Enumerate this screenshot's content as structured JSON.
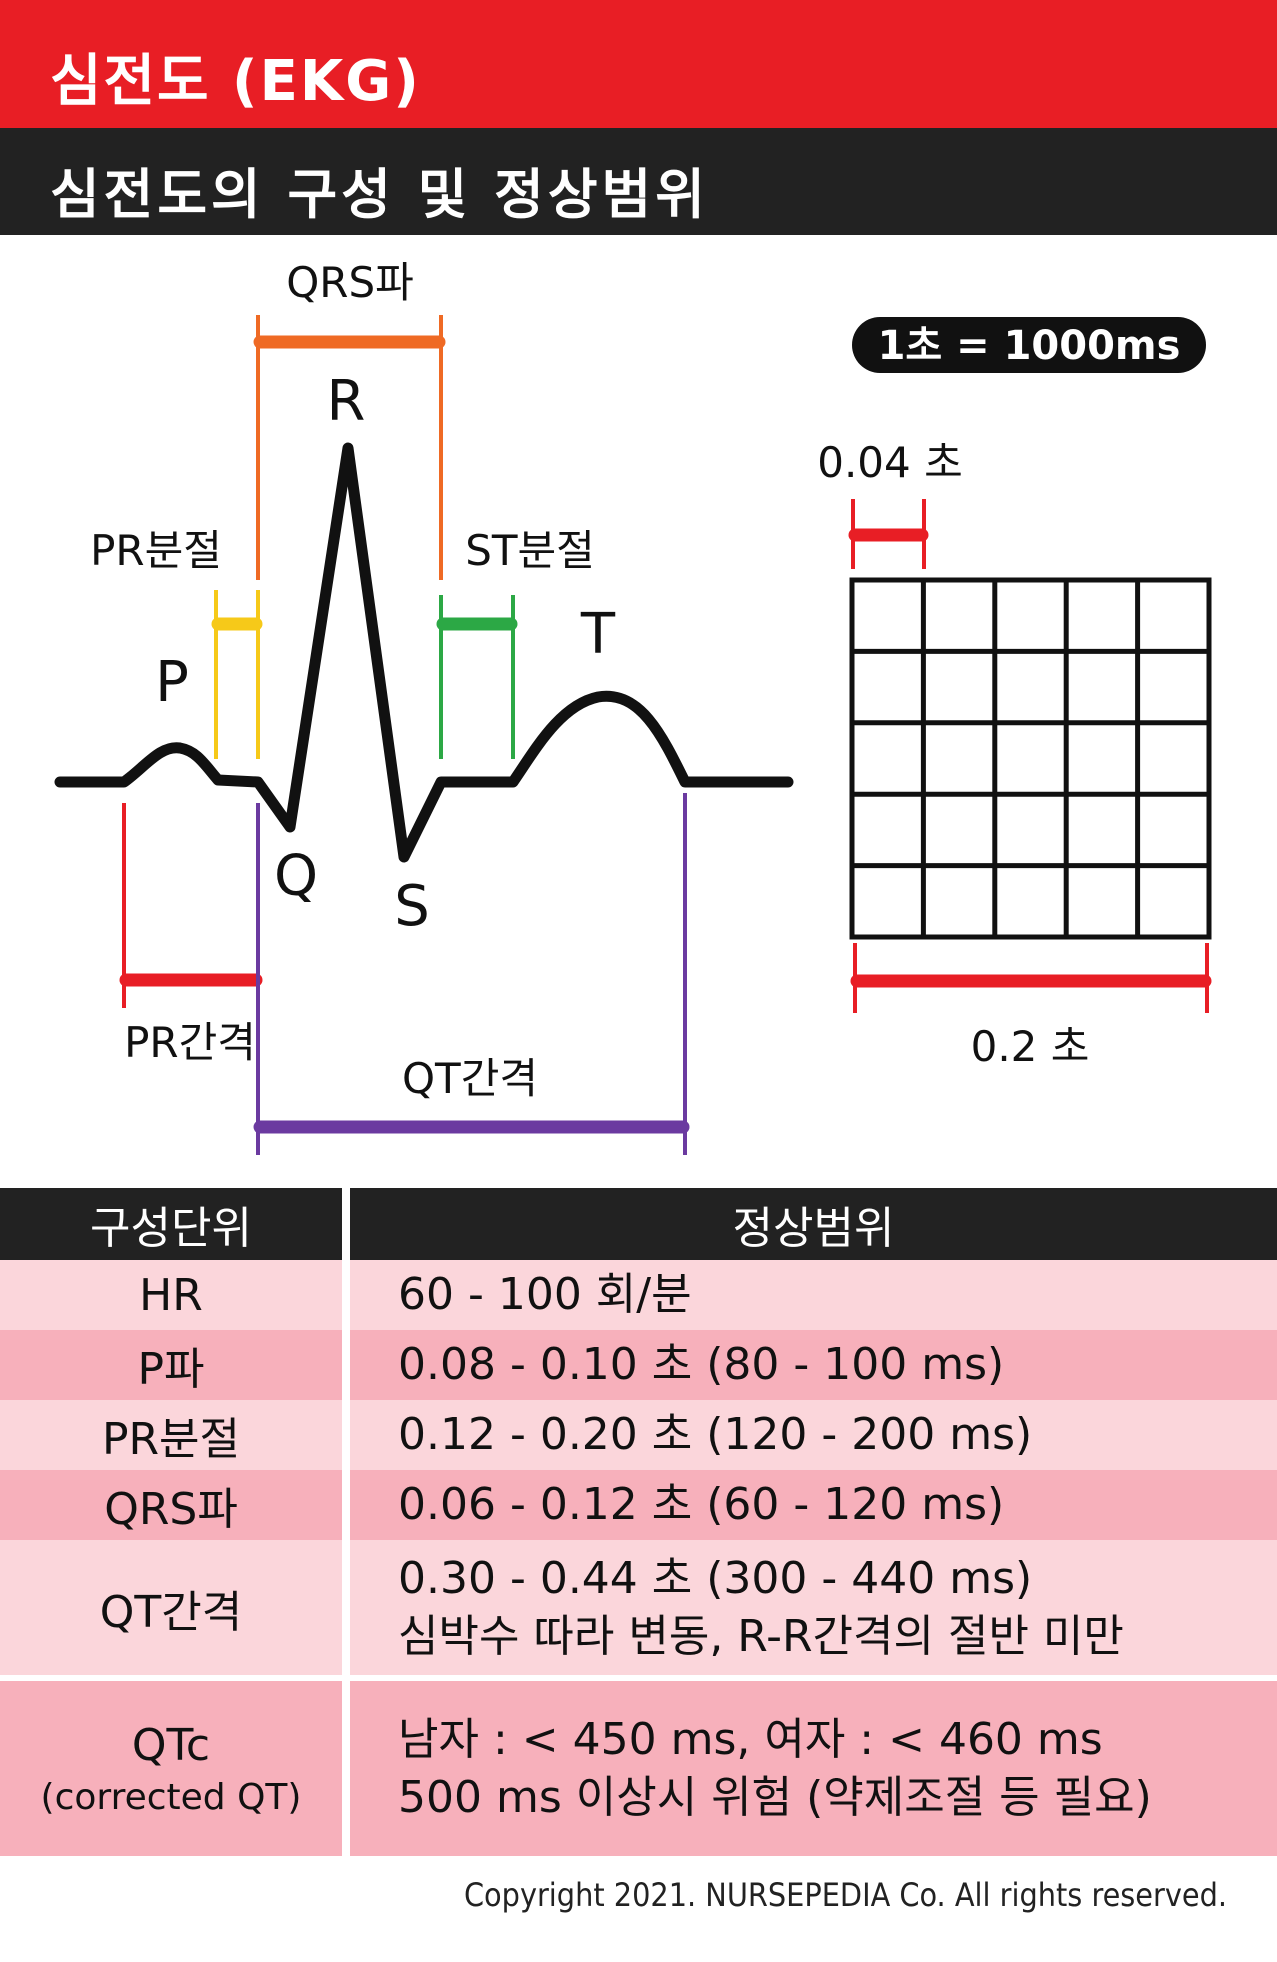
{
  "header": {
    "title": "심전도 (EKG)",
    "subtitle": "심전도의 구성 및 정상범위"
  },
  "waveform": {
    "labels": {
      "p": "P",
      "q": "Q",
      "r": "R",
      "s": "S",
      "t": "T"
    },
    "intervals": {
      "qrs": "QRS파",
      "pr_segment": "PR분절",
      "st_segment": "ST분절",
      "pr_interval": "PR간격",
      "qt_interval": "QT간격"
    },
    "colors": {
      "qrs": "#ef6a24",
      "pr_segment": "#f6c919",
      "st_segment": "#2ca845",
      "pr_interval": "#e81e25",
      "qt_interval": "#6b3aa0",
      "trace": "#111111"
    }
  },
  "grid": {
    "badge": "1초 = 1000ms",
    "small_box": "0.04 초",
    "big_box": "0.2 초",
    "marker_color": "#e81e25"
  },
  "table": {
    "headers": [
      "구성단위",
      "정상범위"
    ],
    "rows": [
      {
        "name": "HR",
        "sub": "",
        "values": [
          "60 - 100 회/분"
        ]
      },
      {
        "name": "P파",
        "sub": "",
        "values": [
          "0.08 - 0.10  초 (80 - 100 ms)"
        ]
      },
      {
        "name": "PR분절",
        "sub": "",
        "values": [
          "0.12 - 0.20  초 (120 - 200 ms)"
        ]
      },
      {
        "name": "QRS파",
        "sub": "",
        "values": [
          "0.06 - 0.12  초 (60 - 120 ms)"
        ]
      },
      {
        "name": "QT간격",
        "sub": "",
        "values": [
          "0.30 - 0.44  초 (300 - 440 ms)",
          "심박수 따라 변동, R-R간격의 절반 미만"
        ]
      },
      {
        "name": "QTc",
        "sub": "(corrected QT)",
        "values": [
          "남자 : < 450 ms, 여자 : < 460 ms",
          "500 ms 이상시 위험 (약제조절 등 필요)"
        ]
      }
    ]
  },
  "copyright": "Copyright 2021. NURSEPEDIA Co. All rights reserved."
}
